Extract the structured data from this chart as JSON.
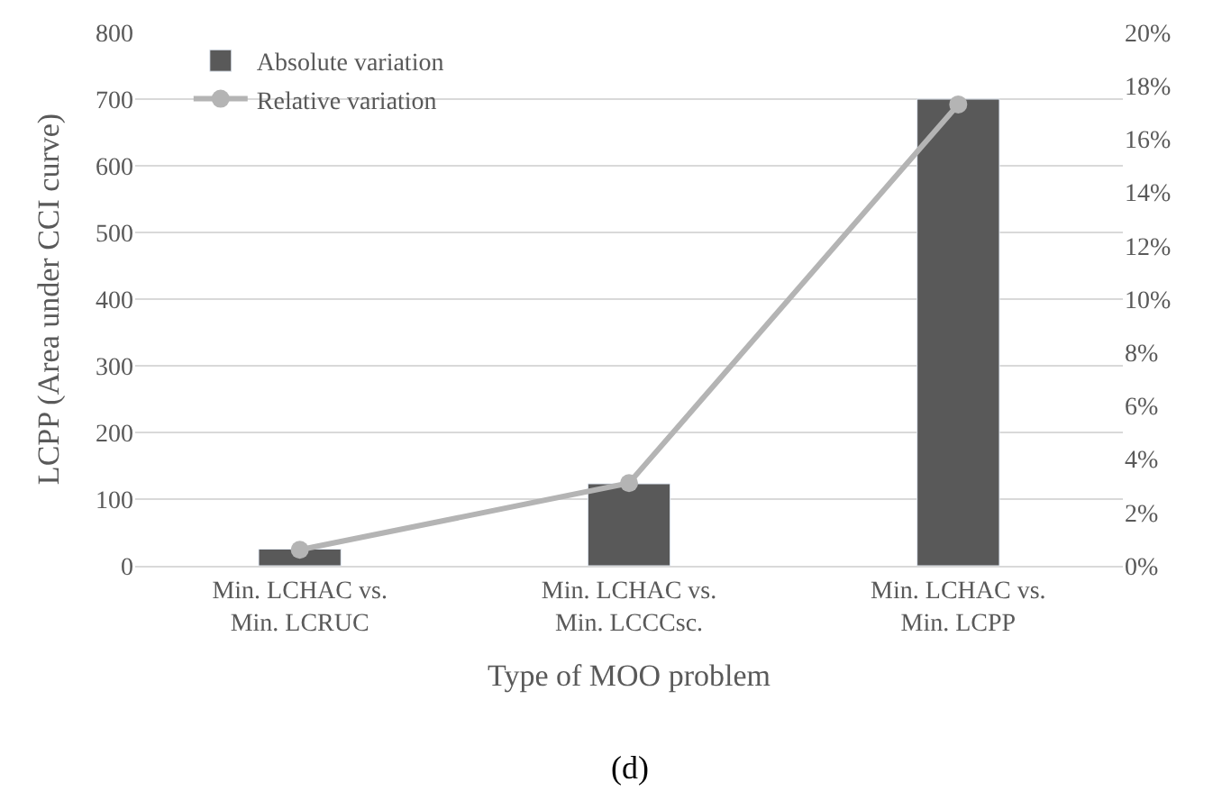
{
  "chart_data": {
    "type": "bar",
    "xlabel": "Type of MOO problem",
    "ylabel": "LCPP (Area under CCI curve)",
    "categories": [
      "Min. LCHAC vs.\nMin. LCRUC",
      "Min. LCHAC vs.\nMin. LCCCsc.",
      "Min. LCHAC vs.\nMin. LCPP"
    ],
    "series": [
      {
        "name": "Absolute variation",
        "color": "#595959",
        "values": [
          25,
          123,
          700
        ]
      },
      {
        "name": "Relative variation",
        "type": "line",
        "axis": "y2",
        "color": "#b4b4b4",
        "values": [
          0.6,
          3.1,
          17.3
        ],
        "marker": "circle",
        "line_style": "solid"
      }
    ],
    "ylim": [
      0,
      800
    ],
    "yticks": [
      0,
      100,
      200,
      300,
      400,
      500,
      600,
      700,
      800
    ],
    "y2lim": [
      0,
      20
    ],
    "y2ticks": [
      {
        "value": 0,
        "label": "0%"
      },
      {
        "value": 2,
        "label": "2%"
      },
      {
        "value": 4,
        "label": "4%"
      },
      {
        "value": 6,
        "label": "6%"
      },
      {
        "value": 8,
        "label": "8%"
      },
      {
        "value": 10,
        "label": "10%"
      },
      {
        "value": 12,
        "label": "12%"
      },
      {
        "value": 14,
        "label": "14%"
      },
      {
        "value": 16,
        "label": "16%"
      },
      {
        "value": 18,
        "label": "18%"
      },
      {
        "value": 20,
        "label": "20%"
      }
    ],
    "grid": "y",
    "legend": "top left",
    "annotations": [
      "(d)"
    ]
  }
}
